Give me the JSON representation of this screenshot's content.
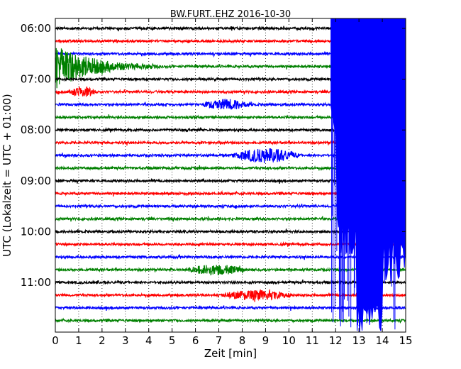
{
  "chart_data": {
    "type": "line",
    "title": "BW.FURT..EHZ 2016-10-30",
    "xlabel": "Zeit  [min]",
    "ylabel": "UTC (Lokalzeit = UTC + 01:00)",
    "xlim": [
      0,
      15
    ],
    "x_ticks": [
      0,
      1,
      2,
      3,
      4,
      5,
      6,
      7,
      8,
      9,
      10,
      11,
      12,
      13,
      14,
      15
    ],
    "y_tick_labels": [
      "06:00",
      "07:00",
      "08:00",
      "09:00",
      "10:00",
      "11:00"
    ],
    "grid": "vertical dotted at each minute",
    "row_interval_minutes": 15,
    "series": [
      {
        "start_utc": "06:00",
        "color": "#000000"
      },
      {
        "start_utc": "06:15",
        "color": "#ff0000"
      },
      {
        "start_utc": "06:30",
        "color": "#0000ff"
      },
      {
        "start_utc": "06:45",
        "color": "#008000"
      },
      {
        "start_utc": "07:00",
        "color": "#000000"
      },
      {
        "start_utc": "07:15",
        "color": "#ff0000"
      },
      {
        "start_utc": "07:30",
        "color": "#0000ff"
      },
      {
        "start_utc": "07:45",
        "color": "#008000"
      },
      {
        "start_utc": "08:00",
        "color": "#000000"
      },
      {
        "start_utc": "08:15",
        "color": "#ff0000"
      },
      {
        "start_utc": "08:30",
        "color": "#0000ff"
      },
      {
        "start_utc": "08:45",
        "color": "#008000"
      },
      {
        "start_utc": "09:00",
        "color": "#000000"
      },
      {
        "start_utc": "09:15",
        "color": "#ff0000"
      },
      {
        "start_utc": "09:30",
        "color": "#0000ff"
      },
      {
        "start_utc": "09:45",
        "color": "#008000"
      },
      {
        "start_utc": "10:00",
        "color": "#000000"
      },
      {
        "start_utc": "10:15",
        "color": "#ff0000"
      },
      {
        "start_utc": "10:30",
        "color": "#0000ff"
      },
      {
        "start_utc": "10:45",
        "color": "#008000"
      },
      {
        "start_utc": "11:00",
        "color": "#000000"
      },
      {
        "start_utc": "11:15",
        "color": "#ff0000"
      },
      {
        "start_utc": "11:30",
        "color": "#0000ff"
      },
      {
        "start_utc": "11:45",
        "color": "#008000"
      }
    ],
    "events": [
      {
        "row": 3,
        "t_start": 0.0,
        "t_end": 4.5,
        "amplitude": "very large decaying",
        "note": "large green wiggle starting near 06:45"
      },
      {
        "row": 5,
        "t_start": 0.5,
        "t_end": 1.8,
        "amplitude": "medium",
        "note": "red burst"
      },
      {
        "row": 6,
        "t_start": 6.2,
        "t_end": 8.5,
        "amplitude": "medium",
        "note": "blue burst"
      },
      {
        "row": 10,
        "t_start": 7.5,
        "t_end": 10.5,
        "amplitude": "large",
        "note": "blue burst"
      },
      {
        "row": 19,
        "t_start": 5.5,
        "t_end": 8.2,
        "amplitude": "medium",
        "note": "green burst"
      },
      {
        "row": 21,
        "t_start": 7.0,
        "t_end": 10.2,
        "amplitude": "medium",
        "note": "red burst"
      },
      {
        "row": 6,
        "t_start": 11.8,
        "t_end": 15.0,
        "amplitude": "saturated",
        "note": "large blue overlay extending down to ~11:45"
      }
    ]
  }
}
